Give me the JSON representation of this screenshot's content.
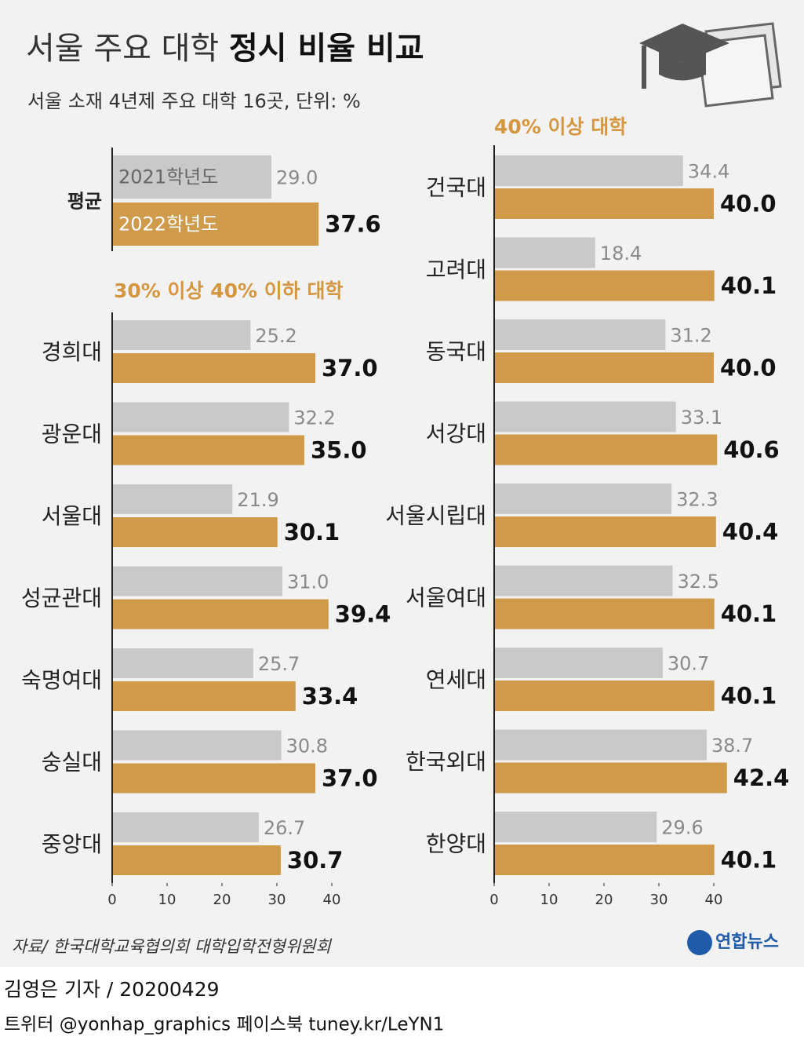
{
  "header": {
    "title": [
      "서울 주요 대학",
      "정시 비율 비교"
    ],
    "subtitle": "서울 소재 4년제 주요 대학 16곳, 단위: %"
  },
  "chart_data": [
    {
      "type": "bar",
      "categories": [
        "평균"
      ],
      "series": [
        {
          "name": "2021학년도",
          "color": "#c8c9cb",
          "values": [
            29.0
          ],
          "value_labels": [
            "29.0"
          ]
        },
        {
          "name": "2022학년도",
          "color": "#cf9a4a",
          "values": [
            37.6
          ],
          "value_labels": [
            "37.6"
          ]
        }
      ],
      "xlim": [
        0,
        40
      ]
    },
    {
      "type": "bar",
      "title": "30% 이상 40% 이하 대학",
      "categories": [
        "경희대",
        "광운대",
        "서울대",
        "성균관대",
        "숙명여대",
        "숭실대",
        "중앙대"
      ],
      "series": [
        {
          "color": "#c8c9cb",
          "values": [
            25.2,
            32.2,
            21.9,
            31.0,
            25.7,
            30.8,
            26.7
          ],
          "value_labels": [
            "25.2",
            "32.2",
            "21.9",
            "31.0",
            "25.7",
            "30.8",
            "26.7"
          ]
        },
        {
          "color": "#cf9a4a",
          "values": [
            37.0,
            35.0,
            30.1,
            39.4,
            33.4,
            37.0,
            30.7
          ],
          "value_labels": [
            "37.0",
            "35.0",
            "30.1",
            "39.4",
            "33.4",
            "37.0",
            "30.7"
          ]
        }
      ],
      "xlim": [
        0,
        40
      ],
      "xticks": [
        0,
        10,
        20,
        30,
        40
      ]
    },
    {
      "type": "bar",
      "title": "40% 이상 대학",
      "categories": [
        "건국대",
        "고려대",
        "동국대",
        "서강대",
        "서울시립대",
        "서울여대",
        "연세대",
        "한국외대",
        "한양대"
      ],
      "series": [
        {
          "color": "#c8c9cb",
          "values": [
            34.4,
            18.4,
            31.2,
            33.1,
            32.3,
            32.5,
            30.7,
            38.7,
            29.6
          ],
          "value_labels": [
            "34.4",
            "18.4",
            "31.2",
            "33.1",
            "32.3",
            "32.5",
            "30.7",
            "38.7",
            "29.6"
          ]
        },
        {
          "color": "#cf9a4a",
          "values": [
            40.0,
            40.1,
            40.0,
            40.6,
            40.4,
            40.1,
            40.1,
            42.4,
            40.1
          ],
          "value_labels": [
            "40.0",
            "40.1",
            "40.0",
            "40.6",
            "40.4",
            "40.1",
            "40.1",
            "42.4",
            "40.1"
          ]
        }
      ],
      "xlim": [
        0,
        40
      ],
      "xticks": [
        0,
        10,
        20,
        30,
        40
      ]
    }
  ],
  "footer": {
    "source": "자료/ 한국대학교육협의회 대학입학전형위원회",
    "logo": "연합뉴스",
    "byline": "김영은 기자 / 20200429",
    "social": "트위터 @yonhap_graphics  페이스북 tuney.kr/LeYN1"
  }
}
